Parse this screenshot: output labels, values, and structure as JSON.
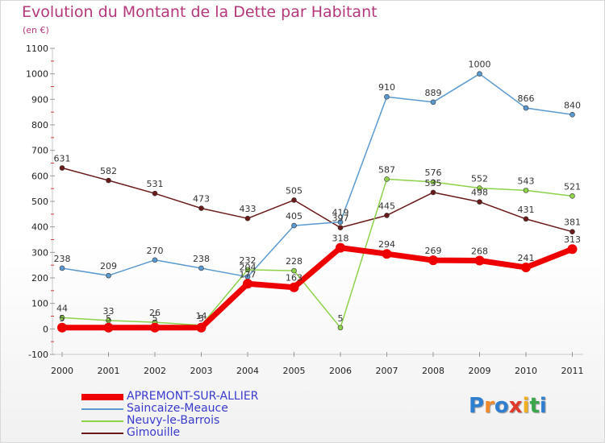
{
  "title": "Evolution du Montant de la Dette par Habitant",
  "subtitle": "(en €)",
  "logo": {
    "text": "Proxiti",
    "letters": [
      "P",
      "r",
      "o",
      "x",
      "i",
      "t",
      "i"
    ]
  },
  "chart_data": {
    "type": "line",
    "title": "Evolution du Montant de la Dette par Habitant",
    "ylabel": "(en €)",
    "xlabel": "",
    "x": [
      "2000",
      "2001",
      "2002",
      "2003",
      "2004",
      "2005",
      "2006",
      "2007",
      "2008",
      "2009",
      "2010",
      "2011"
    ],
    "ylim": [
      -100,
      1100
    ],
    "yticks": [
      "-100",
      "0",
      "100",
      "200",
      "300",
      "400",
      "500",
      "600",
      "700",
      "800",
      "900",
      "1000",
      "1100"
    ],
    "grid": false,
    "legend_position": "bottom-left",
    "series": [
      {
        "name": "Gimouille",
        "color": "#6b1a1a",
        "width": 1.5,
        "values": [
          631,
          582,
          531,
          473,
          433,
          505,
          397,
          445,
          535,
          498,
          431,
          381
        ],
        "labels": [
          "631",
          "582",
          "531",
          "473",
          "433",
          "505",
          "397",
          "445",
          "535",
          "498",
          "431",
          "381"
        ]
      },
      {
        "name": "Saincaize-Meauce",
        "color": "#5a9ad0",
        "width": 1.5,
        "values": [
          238,
          209,
          270,
          238,
          204,
          405,
          419,
          910,
          889,
          1000,
          866,
          840
        ],
        "labels": [
          "238",
          "209",
          "270",
          "238",
          "204",
          "405",
          "419",
          "910",
          "889",
          "1000",
          "866",
          "840"
        ]
      },
      {
        "name": "Neuvy-le-Barrois",
        "color": "#8ed24a",
        "width": 1.5,
        "values": [
          44,
          33,
          26,
          14,
          232,
          228,
          5,
          587,
          576,
          552,
          543,
          521
        ],
        "labels": [
          "44",
          "33",
          "26",
          "14",
          "232",
          "228",
          "5",
          "587",
          "576",
          "552",
          "543",
          "521"
        ]
      },
      {
        "name": "APREMONT-SUR-ALLIER",
        "color": "#ee0000",
        "width": 7,
        "values": [
          5,
          5,
          5,
          5,
          177,
          163,
          318,
          294,
          269,
          268,
          241,
          313
        ],
        "labels": [
          "5",
          "5",
          "5",
          "5",
          "177",
          "163",
          "318",
          "294",
          "269",
          "268",
          "241",
          "313"
        ]
      }
    ],
    "legend": [
      {
        "name": "APREMONT-SUR-ALLIER",
        "color": "#ee0000",
        "thick": true
      },
      {
        "name": "Saincaize-Meauce",
        "color": "#5a9ad0",
        "thick": false
      },
      {
        "name": "Neuvy-le-Barrois",
        "color": "#8ed24a",
        "thick": false
      },
      {
        "name": "Gimouille",
        "color": "#6b1a1a",
        "thick": false
      }
    ]
  }
}
